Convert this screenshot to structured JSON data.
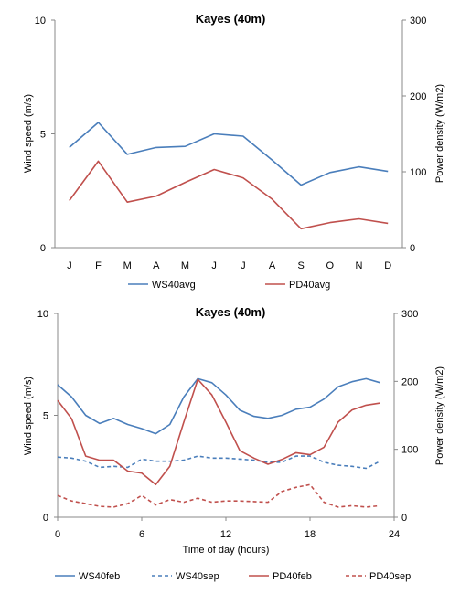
{
  "chart_data": [
    {
      "type": "line",
      "title": "Kayes (40m)",
      "ylabel": "Wind speed (m/s)",
      "y2label": "Power density (W/m2)",
      "xlabel": "",
      "categories": [
        "J",
        "F",
        "M",
        "A",
        "M",
        "J",
        "J",
        "A",
        "S",
        "O",
        "N",
        "D"
      ],
      "ylim": [
        0,
        10
      ],
      "yticks": [
        "0",
        "5",
        "10"
      ],
      "y2lim": [
        0,
        300
      ],
      "y2ticks": [
        "0",
        "100",
        "200",
        "300"
      ],
      "grid": false,
      "legend": "bottom",
      "series": [
        {
          "name": "WS40avg",
          "axis": "left",
          "color": "#4a7ebb",
          "dash": "solid",
          "values": [
            4.4,
            5.5,
            4.1,
            4.4,
            4.45,
            5.0,
            4.9,
            3.85,
            2.75,
            3.3,
            3.55,
            3.35
          ]
        },
        {
          "name": "PD40avg",
          "axis": "right",
          "color": "#c0504d",
          "dash": "solid",
          "values": [
            62,
            114,
            60,
            68,
            86,
            103,
            92,
            64,
            25,
            33,
            38,
            32
          ]
        }
      ]
    },
    {
      "type": "line",
      "title": "Kayes (40m)",
      "ylabel": "Wind speed (m/s)",
      "y2label": "Power density (W/m2)",
      "xlabel": "Time of day (hours)",
      "x": [
        0,
        1,
        2,
        3,
        4,
        5,
        6,
        7,
        8,
        9,
        10,
        11,
        12,
        13,
        14,
        15,
        16,
        17,
        18,
        19,
        20,
        21,
        22,
        23
      ],
      "xlim": [
        0,
        24
      ],
      "xticks": [
        "0",
        "6",
        "12",
        "18",
        "24"
      ],
      "ylim": [
        0,
        10
      ],
      "yticks": [
        "0",
        "5",
        "10"
      ],
      "y2lim": [
        0,
        300
      ],
      "y2ticks": [
        "0",
        "100",
        "200",
        "300"
      ],
      "grid": false,
      "legend": "bottom",
      "series": [
        {
          "name": "WS40feb",
          "axis": "left",
          "color": "#4a7ebb",
          "dash": "solid",
          "values": [
            6.5,
            5.9,
            5.0,
            4.6,
            4.85,
            4.55,
            4.35,
            4.1,
            4.55,
            5.9,
            6.8,
            6.6,
            6.0,
            5.25,
            4.95,
            4.85,
            5.0,
            5.3,
            5.4,
            5.8,
            6.4,
            6.65,
            6.8,
            6.6
          ]
        },
        {
          "name": "WS40sep",
          "axis": "left",
          "color": "#4a7ebb",
          "dash": "dashed",
          "values": [
            2.95,
            2.9,
            2.75,
            2.45,
            2.5,
            2.45,
            2.85,
            2.75,
            2.75,
            2.8,
            3.0,
            2.9,
            2.9,
            2.85,
            2.8,
            2.7,
            2.7,
            3.0,
            3.0,
            2.7,
            2.55,
            2.5,
            2.4,
            2.75
          ]
        },
        {
          "name": "PD40feb",
          "axis": "right",
          "color": "#c0504d",
          "dash": "solid",
          "values": [
            172,
            145,
            90,
            84,
            84,
            68,
            65,
            48,
            75,
            140,
            203,
            180,
            140,
            98,
            87,
            78,
            85,
            95,
            92,
            103,
            140,
            158,
            165,
            168
          ]
        },
        {
          "name": "PD40sep",
          "axis": "right",
          "color": "#c0504d",
          "dash": "dashed",
          "values": [
            32,
            24,
            20,
            16,
            15,
            20,
            32,
            18,
            26,
            22,
            28,
            22,
            24,
            24,
            23,
            22,
            38,
            44,
            48,
            22,
            15,
            17,
            15,
            17
          ]
        }
      ]
    }
  ]
}
